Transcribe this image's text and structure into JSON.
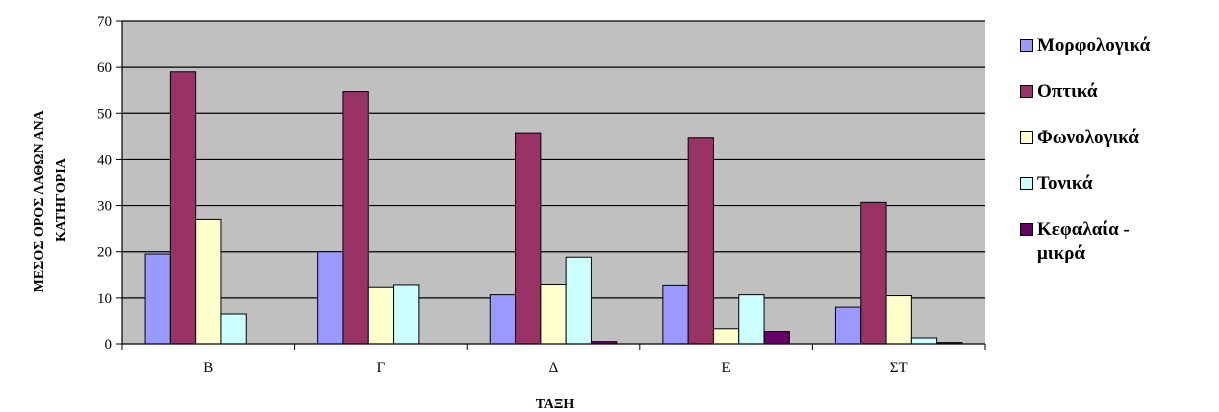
{
  "chart_data": {
    "type": "bar",
    "title": "",
    "xlabel": "ΤΑΞΗ",
    "ylabel_lines": [
      "ΜΕΣΟΣ ΟΡΟΣ ΛΑΘΩΝ ΑΝΑ",
      "ΚΑΤΗΓΟΡΙΑ"
    ],
    "categories": [
      "Β",
      "Γ",
      "Δ",
      "Ε",
      "ΣΤ"
    ],
    "ylim": [
      0,
      70
    ],
    "yticks": [
      0,
      10,
      20,
      30,
      40,
      50,
      60,
      70
    ],
    "grid": true,
    "legend_position": "right",
    "series": [
      {
        "name": "Μορφολογικά",
        "color": "#9999ff",
        "values": [
          19.5,
          20,
          10.7,
          12.7,
          8
        ]
      },
      {
        "name": "Οπτικά",
        "color": "#993366",
        "values": [
          59,
          54.7,
          45.7,
          44.7,
          30.7
        ]
      },
      {
        "name": "Φωνολογικά",
        "color": "#ffffcc",
        "values": [
          27,
          12.3,
          12.9,
          3.3,
          10.5
        ]
      },
      {
        "name": "Τονικά",
        "color": "#ccffff",
        "values": [
          6.5,
          12.8,
          18.8,
          10.7,
          1.3
        ]
      },
      {
        "name": "Κεφαλαία - μικρά",
        "color": "#660066",
        "values": [
          0,
          0,
          0.5,
          2.7,
          0.3
        ]
      }
    ]
  },
  "colors": {
    "plot_background": "#c0c0c0",
    "gridline": "#000000"
  }
}
